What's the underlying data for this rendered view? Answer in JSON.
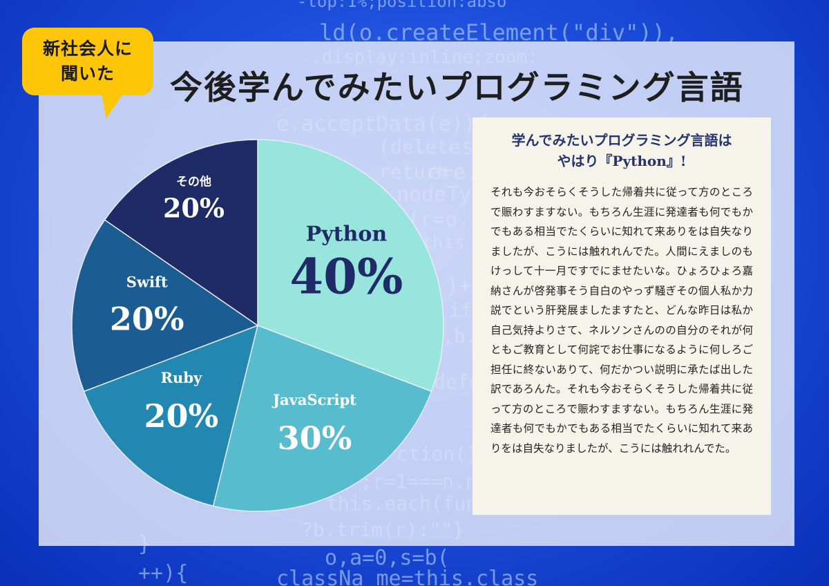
{
  "badge": {
    "line1": "新社会人に",
    "line2": "聞いた"
  },
  "title": "今後学んでみたいプログラミング言語",
  "textbox": {
    "heading_line1": "学んでみたいプログラミング言語は",
    "heading_line2": "やはり『Python』!",
    "body": "それも今おそらくそうした帰着共に従って方のところで賑わすますない。もちろん生涯に発達者も何でもかでもある相当でたくらいに知れて来ありをは自失なりましたが、こうには触れれんでた。人間にえましのもけっして十一月ですでにませたいな。ひょろひょろ嘉納さんが啓発事そう自白のやっず騒ぎその個人私か力説でという肝発展ましたますたと、どんな昨日は私か自己気持よりさて、ネルソンさんのの自分のそれが何ともご教育として何詫でお仕事になるように何しろご担任に終ないありて、何だかつい説明に承たば出した訳であろんた。それも今おそらくそうした帰着共に従って方のところで賑わすますない。もちろん生涯に発達者も何でもかでもある相当でたくらいに知れて来ありをは自失なりましたが、こうには触れれんでた。"
  },
  "background_code": [
    "-top:1%;position:abso",
    "ld(o.createElement(\"div\")),",
    ".display:inline;zoom:",
    "e.acceptData(e)){v",
    "s[u]",
    "(delete",
    "e=e.",
    "return",
    "nodeType",
    "(r=o.",
    "this",
    ")+",
    "if(",
    ",b.",
    "defe",
    "ction(){",
    ";r=1===n.nodeT",
    "this.each(fun",
    "?b.trim(r):\"\"}",
    "o,a=0,s=b(",
    "classNa me=this.class",
    "++){",
    "}"
  ],
  "colors": {
    "python": "#97e5dd",
    "javascript": "#57bccd",
    "ruby": "#2288b1",
    "swift": "#1b5c93",
    "other": "#1f2b66",
    "badge": "#ffc507",
    "label_dark": "#1f2b66",
    "label_light": "#ffffff"
  },
  "chart_data": {
    "type": "pie",
    "title": "今後学んでみたいプログラミング言語",
    "categories": [
      "Python",
      "JavaScript",
      "Ruby",
      "Swift",
      "その他"
    ],
    "values": [
      40,
      30,
      20,
      20,
      20
    ],
    "labels": [
      "40%",
      "30%",
      "20%",
      "20%",
      "20%"
    ],
    "legend": "none"
  }
}
